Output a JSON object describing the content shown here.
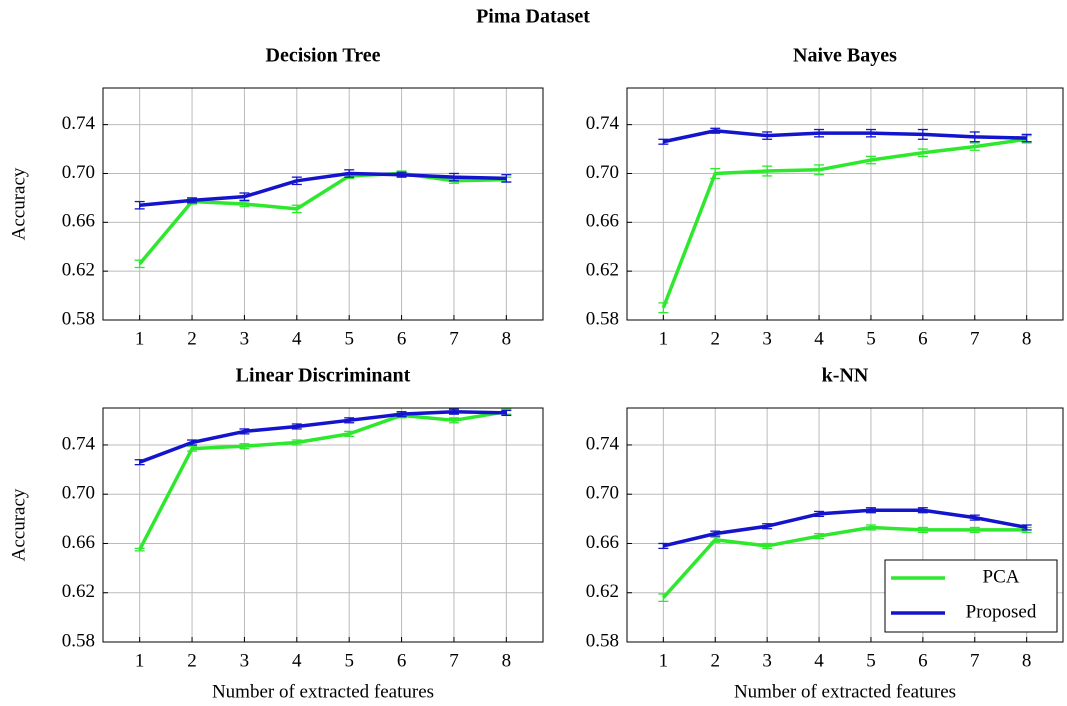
{
  "title": "Pima Dataset",
  "chart_data": [
    {
      "type": "line",
      "title": "Decision Tree",
      "ylabel": "Accuracy",
      "x": [
        1,
        2,
        3,
        4,
        5,
        6,
        7,
        8
      ],
      "xlim": [
        0.3,
        8.7
      ],
      "xticks": [
        1,
        2,
        3,
        4,
        5,
        6,
        7,
        8
      ],
      "ylim": [
        0.58,
        0.77
      ],
      "yticks": [
        0.58,
        0.62,
        0.66,
        {
          "value": 0.7,
          "label": "0.70"
        },
        0.74
      ],
      "grid": true,
      "series": [
        {
          "name": "PCA",
          "color": "#2ee82e",
          "values": [
            0.626,
            0.677,
            0.675,
            0.671,
            0.698,
            0.7,
            0.694,
            0.695
          ],
          "errors": [
            0.003,
            0.002,
            0.002,
            0.003,
            0.002,
            0.002,
            0.002,
            0.002
          ]
        },
        {
          "name": "Proposed",
          "color": "#1414cc",
          "values": [
            0.674,
            0.678,
            0.681,
            0.694,
            0.7,
            0.699,
            0.697,
            0.696
          ],
          "errors": [
            0.003,
            0.002,
            0.003,
            0.003,
            0.003,
            0.002,
            0.003,
            0.003
          ]
        }
      ]
    },
    {
      "type": "line",
      "title": "Naive Bayes",
      "x": [
        1,
        2,
        3,
        4,
        5,
        6,
        7,
        8
      ],
      "xlim": [
        0.3,
        8.7
      ],
      "xticks": [
        1,
        2,
        3,
        4,
        5,
        6,
        7,
        8
      ],
      "ylim": [
        0.58,
        0.77
      ],
      "yticks": [
        0.58,
        0.62,
        0.66,
        {
          "value": 0.7,
          "label": "0.70"
        },
        0.74
      ],
      "grid": true,
      "series": [
        {
          "name": "PCA",
          "color": "#2ee82e",
          "values": [
            0.59,
            0.7,
            0.702,
            0.703,
            0.711,
            0.717,
            0.722,
            0.728
          ],
          "errors": [
            0.004,
            0.004,
            0.004,
            0.004,
            0.003,
            0.003,
            0.003,
            0.003
          ]
        },
        {
          "name": "Proposed",
          "color": "#1414cc",
          "values": [
            0.726,
            0.735,
            0.731,
            0.733,
            0.733,
            0.732,
            0.73,
            0.729
          ],
          "errors": [
            0.002,
            0.002,
            0.003,
            0.003,
            0.003,
            0.004,
            0.004,
            0.003
          ]
        }
      ]
    },
    {
      "type": "line",
      "title": "Linear Discriminant",
      "ylabel": "Accuracy",
      "xlabel": "Number of extracted features",
      "x": [
        1,
        2,
        3,
        4,
        5,
        6,
        7,
        8
      ],
      "xlim": [
        0.3,
        8.7
      ],
      "xticks": [
        1,
        2,
        3,
        4,
        5,
        6,
        7,
        8
      ],
      "ylim": [
        0.58,
        0.77
      ],
      "yticks": [
        0.58,
        0.62,
        0.66,
        {
          "value": 0.7,
          "label": "0.70"
        },
        0.74
      ],
      "grid": true,
      "series": [
        {
          "name": "PCA",
          "color": "#2ee82e",
          "values": [
            0.655,
            0.737,
            0.739,
            0.742,
            0.749,
            0.764,
            0.76,
            0.767
          ],
          "errors": [
            0.001,
            0.002,
            0.002,
            0.002,
            0.002,
            0.002,
            0.002,
            0.002
          ]
        },
        {
          "name": "Proposed",
          "color": "#1414cc",
          "values": [
            0.726,
            0.742,
            0.751,
            0.755,
            0.76,
            0.765,
            0.767,
            0.766
          ],
          "errors": [
            0.002,
            0.002,
            0.002,
            0.002,
            0.002,
            0.002,
            0.002,
            0.002
          ]
        }
      ]
    },
    {
      "type": "line",
      "title": "k-NN",
      "xlabel": "Number of extracted features",
      "x": [
        1,
        2,
        3,
        4,
        5,
        6,
        7,
        8
      ],
      "xlim": [
        0.3,
        8.7
      ],
      "xticks": [
        1,
        2,
        3,
        4,
        5,
        6,
        7,
        8
      ],
      "ylim": [
        0.58,
        0.77
      ],
      "yticks": [
        0.58,
        0.62,
        0.66,
        {
          "value": 0.7,
          "label": "0.70"
        },
        0.74
      ],
      "grid": true,
      "legend": "lower right",
      "series": [
        {
          "name": "PCA",
          "color": "#2ee82e",
          "values": [
            0.616,
            0.663,
            0.658,
            0.666,
            0.673,
            0.671,
            0.671,
            0.671
          ],
          "errors": [
            0.003,
            0.002,
            0.002,
            0.002,
            0.002,
            0.002,
            0.002,
            0.002
          ]
        },
        {
          "name": "Proposed",
          "color": "#1414cc",
          "values": [
            0.658,
            0.668,
            0.674,
            0.684,
            0.687,
            0.687,
            0.681,
            0.673
          ],
          "errors": [
            0.002,
            0.002,
            0.002,
            0.002,
            0.002,
            0.002,
            0.002,
            0.002
          ]
        }
      ]
    }
  ]
}
